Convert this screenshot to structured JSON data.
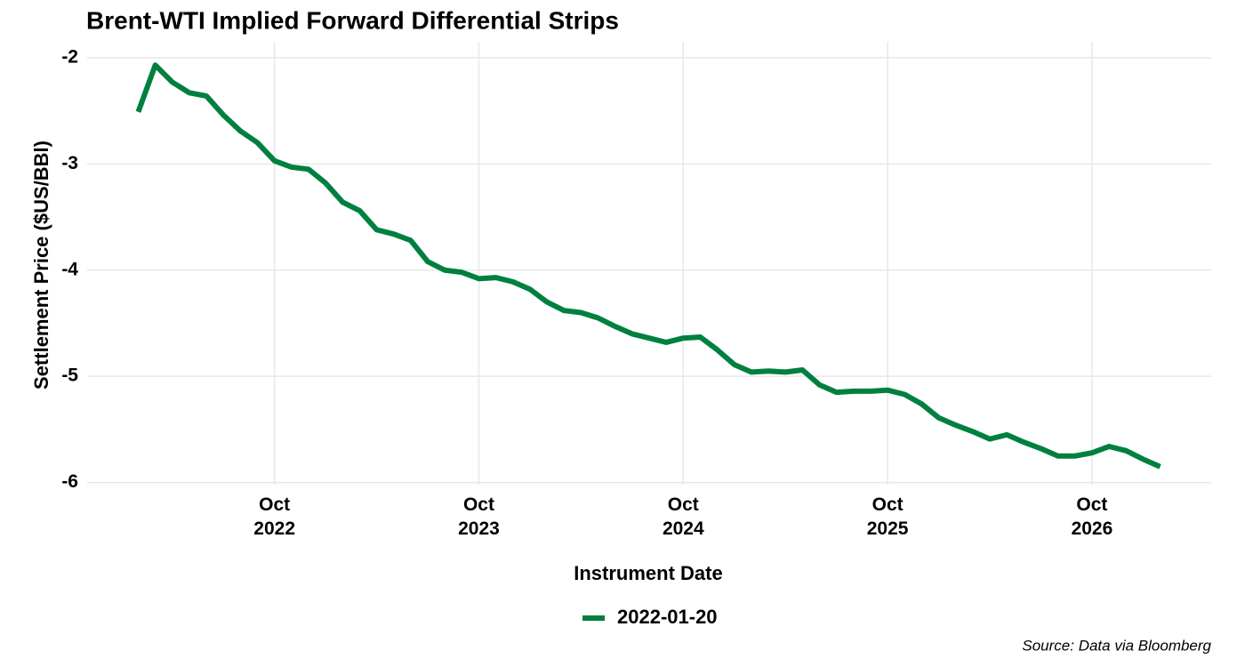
{
  "chart_data": {
    "type": "line",
    "title": "Brent-WTI Implied Forward Differential Strips",
    "x_label": "Instrument Date",
    "y_label": "Settlement Price ($US/BBl)",
    "caption": "Source: Data via Bloomberg",
    "x": [
      "2022-02",
      "2022-03",
      "2022-04",
      "2022-05",
      "2022-06",
      "2022-07",
      "2022-08",
      "2022-09",
      "2022-10",
      "2022-11",
      "2022-12",
      "2023-01",
      "2023-02",
      "2023-03",
      "2023-04",
      "2023-05",
      "2023-06",
      "2023-07",
      "2023-08",
      "2023-09",
      "2023-10",
      "2023-11",
      "2023-12",
      "2024-01",
      "2024-02",
      "2024-03",
      "2024-04",
      "2024-05",
      "2024-06",
      "2024-07",
      "2024-08",
      "2024-09",
      "2024-10",
      "2024-11",
      "2024-12",
      "2025-01",
      "2025-02",
      "2025-03",
      "2025-04",
      "2025-05",
      "2025-06",
      "2025-07",
      "2025-08",
      "2025-09",
      "2025-10",
      "2025-11",
      "2025-12",
      "2026-01",
      "2026-02",
      "2026-03",
      "2026-04",
      "2026-05",
      "2026-06",
      "2026-07",
      "2026-08",
      "2026-09",
      "2026-10",
      "2026-11",
      "2026-12",
      "2027-01",
      "2027-02"
    ],
    "series": [
      {
        "name": "2022-01-20",
        "color": "#00803f",
        "values": [
          -2.51,
          -2.07,
          -2.23,
          -2.33,
          -2.36,
          -2.54,
          -2.69,
          -2.8,
          -2.97,
          -3.03,
          -3.05,
          -3.18,
          -3.36,
          -3.44,
          -3.62,
          -3.66,
          -3.72,
          -3.92,
          -4.0,
          -4.02,
          -4.08,
          -4.07,
          -4.11,
          -4.18,
          -4.3,
          -4.38,
          -4.4,
          -4.45,
          -4.53,
          -4.6,
          -4.64,
          -4.68,
          -4.64,
          -4.63,
          -4.75,
          -4.89,
          -4.96,
          -4.95,
          -4.96,
          -4.94,
          -5.08,
          -5.15,
          -5.14,
          -5.14,
          -5.13,
          -5.17,
          -5.26,
          -5.39,
          -5.46,
          -5.52,
          -5.59,
          -5.55,
          -5.62,
          -5.68,
          -5.75,
          -5.75,
          -5.72,
          -5.66,
          -5.7,
          -5.78,
          -5.85
        ]
      }
    ],
    "xlim": [
      "2021-11",
      "2027-05"
    ],
    "xticks": [
      {
        "value": "2022-10",
        "label": "Oct 2022"
      },
      {
        "value": "2023-10",
        "label": "Oct 2023"
      },
      {
        "value": "2024-10",
        "label": "Oct 2024"
      },
      {
        "value": "2025-10",
        "label": "Oct 2025"
      },
      {
        "value": "2026-10",
        "label": "Oct 2026"
      }
    ],
    "ylim": [
      -6.02,
      -1.85
    ],
    "yticks": [
      -6,
      -5,
      -4,
      -3,
      -2
    ],
    "grid": true,
    "legend_position": "bottom"
  }
}
